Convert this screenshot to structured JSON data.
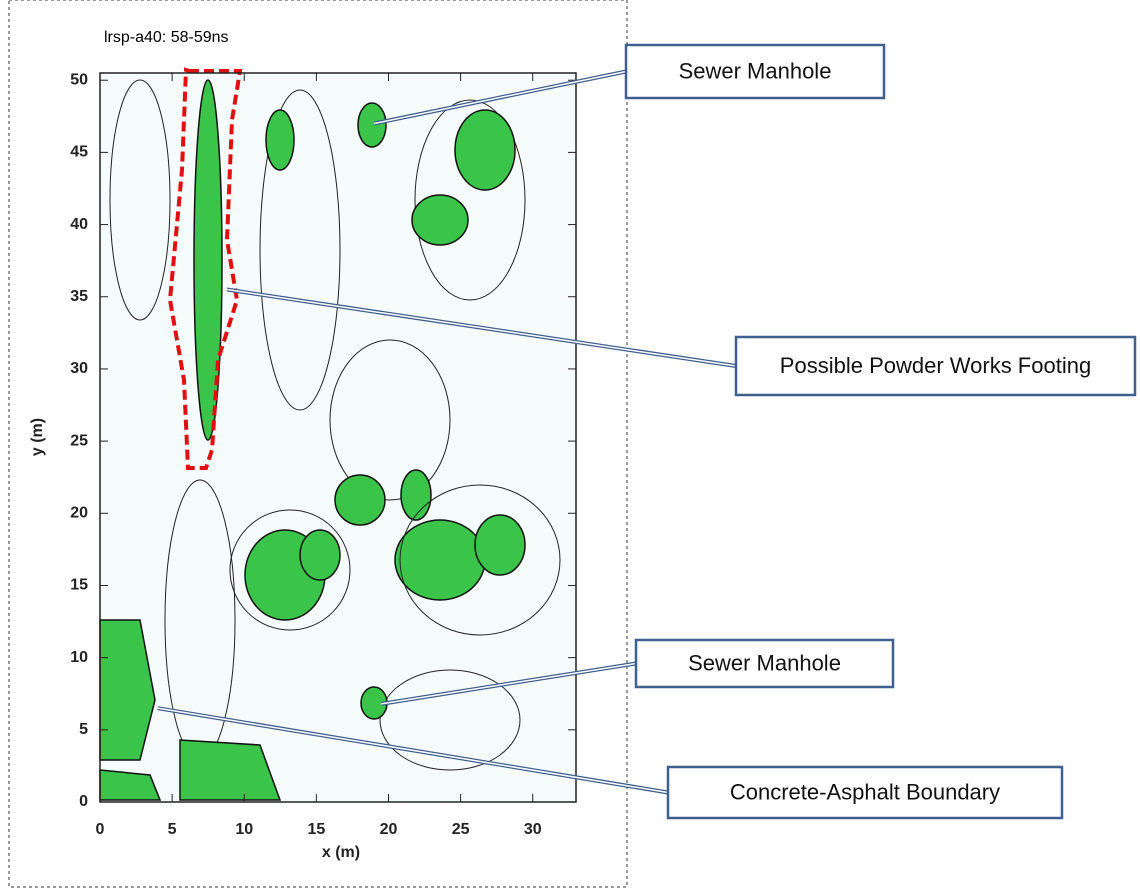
{
  "chart_data": {
    "type": "map",
    "title": "lrsp-a40: 58-59ns",
    "xlabel": "x (m)",
    "ylabel": "y (m)",
    "xlim": [
      0,
      33
    ],
    "ylim": [
      0,
      50.5
    ],
    "xticks": [
      0,
      5,
      10,
      15,
      20,
      25,
      30
    ],
    "yticks": [
      0,
      5,
      10,
      15,
      20,
      25,
      30,
      35,
      40,
      45,
      50
    ],
    "annotations": [
      {
        "text": "Sewer Manhole",
        "x": 19,
        "y": 47
      },
      {
        "text": "Possible Powder Works Footing",
        "x": 8.8,
        "y": 35.5
      },
      {
        "text": "Sewer Manhole",
        "x": 19.5,
        "y": 6.8
      },
      {
        "text": "Concrete-Asphalt Boundary",
        "x": 4,
        "y": 6.5
      }
    ]
  }
}
